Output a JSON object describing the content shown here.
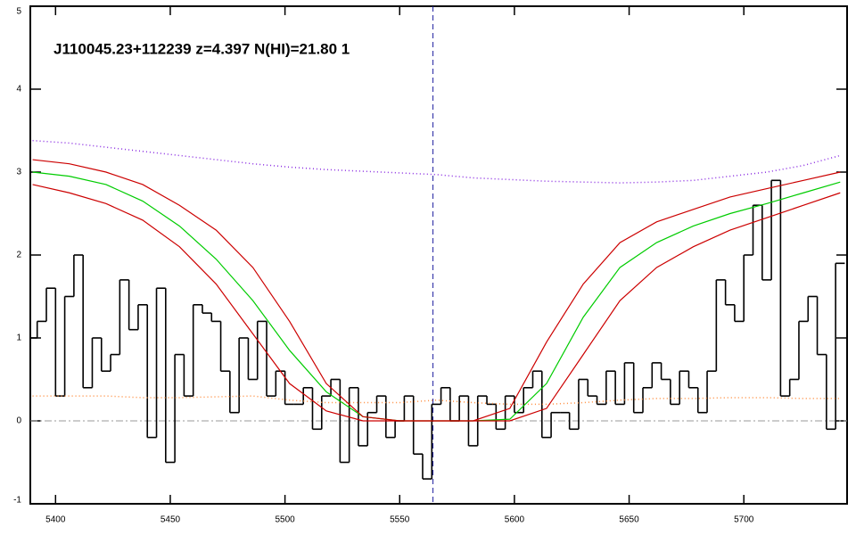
{
  "chart_data": {
    "type": "step",
    "title": "J110045.23+112239 z=4.397 N(HI)=21.80 1",
    "xlim": [
      5389,
      5745
    ],
    "ylim": [
      -1,
      5
    ],
    "xticks": [
      5400,
      5450,
      5500,
      5550,
      5600,
      5650,
      5700
    ],
    "yticks": [
      -1,
      0,
      1,
      2,
      3,
      4,
      5
    ],
    "hline": 0,
    "vline": 5564.5,
    "series": [
      {
        "style": "step",
        "color": "#000000",
        "x": [
          5390,
          5394,
          5398,
          5402,
          5406,
          5410,
          5414,
          5418,
          5422,
          5426,
          5430,
          5434,
          5438,
          5442,
          5446,
          5450,
          5454,
          5458,
          5462,
          5466,
          5470,
          5474,
          5478,
          5482,
          5486,
          5490,
          5494,
          5498,
          5502,
          5506,
          5510,
          5514,
          5518,
          5522,
          5526,
          5530,
          5534,
          5538,
          5542,
          5546,
          5550,
          5554,
          5558,
          5562,
          5566,
          5570,
          5574,
          5578,
          5582,
          5586,
          5590,
          5594,
          5598,
          5602,
          5606,
          5610,
          5614,
          5618,
          5622,
          5626,
          5630,
          5634,
          5638,
          5642,
          5646,
          5650,
          5654,
          5658,
          5662,
          5666,
          5670,
          5674,
          5678,
          5682,
          5686,
          5690,
          5694,
          5698,
          5702,
          5706,
          5710,
          5714,
          5718,
          5722,
          5726,
          5730,
          5734,
          5738,
          5742
        ],
        "values": [
          1.0,
          1.2,
          1.6,
          0.3,
          1.5,
          2.0,
          0.4,
          1.0,
          0.6,
          0.8,
          1.7,
          1.1,
          1.4,
          -0.2,
          1.6,
          -0.5,
          0.8,
          0.3,
          1.4,
          1.3,
          1.2,
          0.6,
          0.1,
          1.0,
          0.5,
          1.2,
          0.3,
          0.6,
          0.2,
          0.2,
          0.4,
          -0.1,
          0.3,
          0.5,
          -0.5,
          0.4,
          -0.3,
          0.1,
          0.3,
          -0.2,
          0.0,
          0.3,
          -0.4,
          -0.7,
          0.2,
          0.4,
          0.0,
          0.3,
          -0.3,
          0.3,
          0.2,
          -0.1,
          0.3,
          0.1,
          0.4,
          0.6,
          -0.2,
          0.1,
          0.1,
          -0.1,
          0.5,
          0.3,
          0.2,
          0.6,
          0.2,
          0.7,
          0.1,
          0.4,
          0.7,
          0.5,
          0.2,
          0.6,
          0.4,
          0.1,
          0.6,
          1.7,
          1.4,
          1.2,
          2.0,
          2.6,
          1.7,
          2.9,
          0.3,
          0.5,
          1.2,
          1.5,
          0.8,
          -0.1,
          1.9
        ]
      },
      {
        "style": "dotted",
        "color": "#ff8c3c",
        "x": [
          5390,
          5406,
          5422,
          5438,
          5454,
          5470,
          5486,
          5502,
          5518,
          5534,
          5550,
          5566,
          5582,
          5598,
          5614,
          5630,
          5646,
          5662,
          5678,
          5694,
          5710,
          5726,
          5742
        ],
        "values": [
          0.3,
          0.3,
          0.3,
          0.28,
          0.28,
          0.29,
          0.3,
          0.25,
          0.22,
          0.22,
          0.22,
          0.25,
          0.22,
          0.2,
          0.2,
          0.22,
          0.25,
          0.27,
          0.27,
          0.28,
          0.28,
          0.27,
          0.27
        ]
      },
      {
        "style": "dotted",
        "color": "#8a2be2",
        "x": [
          5390,
          5406,
          5422,
          5438,
          5454,
          5470,
          5486,
          5502,
          5518,
          5534,
          5550,
          5566,
          5582,
          5598,
          5614,
          5630,
          5646,
          5662,
          5678,
          5694,
          5710,
          5726,
          5742
        ],
        "values": [
          3.38,
          3.35,
          3.3,
          3.25,
          3.2,
          3.15,
          3.1,
          3.06,
          3.03,
          3.01,
          2.99,
          2.97,
          2.93,
          2.91,
          2.89,
          2.88,
          2.87,
          2.88,
          2.9,
          2.95,
          3.0,
          3.08,
          3.2
        ]
      },
      {
        "style": "solid",
        "color": "#00cc00",
        "x": [
          5390,
          5406,
          5422,
          5438,
          5454,
          5470,
          5486,
          5502,
          5518,
          5534,
          5550,
          5566,
          5582,
          5598,
          5614,
          5630,
          5646,
          5662,
          5678,
          5694,
          5710,
          5726,
          5742
        ],
        "values": [
          3.0,
          2.95,
          2.85,
          2.65,
          2.35,
          1.95,
          1.45,
          0.85,
          0.35,
          0.05,
          0.0,
          0.0,
          0.0,
          0.02,
          0.45,
          1.25,
          1.85,
          2.15,
          2.35,
          2.5,
          2.62,
          2.75,
          2.88
        ]
      },
      {
        "style": "solid",
        "color": "#cc0000",
        "x": [
          5390,
          5406,
          5422,
          5438,
          5454,
          5470,
          5486,
          5502,
          5518,
          5534,
          5550,
          5566,
          5582,
          5598,
          5614,
          5630,
          5646,
          5662,
          5678,
          5694,
          5710,
          5726,
          5742
        ],
        "values": [
          3.15,
          3.1,
          3.0,
          2.85,
          2.6,
          2.3,
          1.85,
          1.2,
          0.45,
          0.05,
          0.0,
          0.0,
          0.0,
          0.15,
          0.95,
          1.65,
          2.15,
          2.4,
          2.55,
          2.7,
          2.8,
          2.9,
          3.0
        ]
      },
      {
        "style": "solid",
        "color": "#cc0000",
        "x": [
          5390,
          5406,
          5422,
          5438,
          5454,
          5470,
          5486,
          5502,
          5518,
          5534,
          5550,
          5566,
          5582,
          5598,
          5614,
          5630,
          5646,
          5662,
          5678,
          5694,
          5710,
          5726,
          5742
        ],
        "values": [
          2.85,
          2.75,
          2.62,
          2.42,
          2.1,
          1.65,
          1.05,
          0.45,
          0.12,
          0.0,
          0.0,
          0.0,
          0.0,
          0.0,
          0.15,
          0.8,
          1.45,
          1.85,
          2.1,
          2.3,
          2.45,
          2.6,
          2.75
        ]
      }
    ]
  }
}
